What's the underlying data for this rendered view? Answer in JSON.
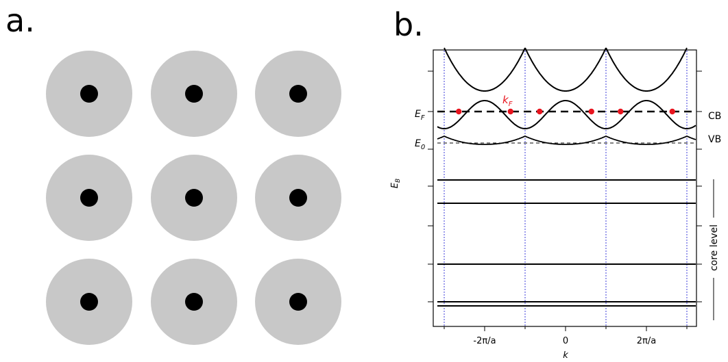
{
  "panel_a": {
    "label": "a.",
    "rows": 3,
    "cols": 3,
    "halo_color": "#c8c8c8",
    "core_color": "#000000"
  },
  "panel_b": {
    "label": "b.",
    "x_axis": {
      "title": "k",
      "tick_labels": [
        "-2π/a",
        "0",
        "2π/a"
      ]
    },
    "y_axis": {
      "title": "E",
      "title_sub": "B"
    },
    "fermi_level": {
      "label": "E",
      "sub": "F"
    },
    "ground_level": {
      "label": "E",
      "sub": "0"
    },
    "fermi_k_label": {
      "label": "k",
      "sub": "F"
    },
    "side_labels": {
      "conduction": "CB",
      "valence": "VB",
      "core": "core level"
    },
    "colors": {
      "curve": "#000000",
      "fermi_point": "#e8141e",
      "brillouin_boundary": "#3a3ad8",
      "frame": "#000000"
    }
  }
}
